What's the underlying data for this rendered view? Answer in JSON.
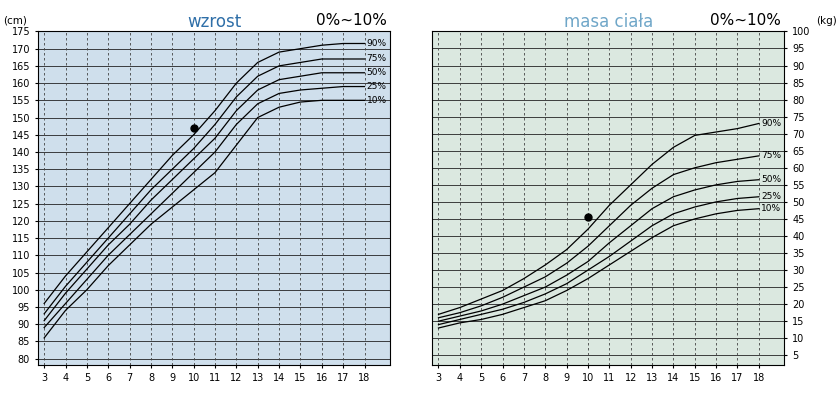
{
  "chart_data": [
    {
      "type": "line",
      "title": "wzrost",
      "corner_text": "0%~10%",
      "y_unit": "(cm)",
      "x": [
        3,
        4,
        5,
        6,
        7,
        8,
        9,
        10,
        11,
        12,
        13,
        14,
        15,
        16,
        17,
        18
      ],
      "series": [
        {
          "name": "90%",
          "values": [
            96,
            104,
            111,
            118,
            125,
            132,
            139,
            145,
            152,
            160,
            166,
            169,
            170,
            171,
            171.5,
            171.5
          ]
        },
        {
          "name": "75%",
          "values": [
            93,
            101,
            108,
            115,
            122,
            129,
            135,
            141,
            148,
            156,
            162,
            165,
            166,
            167,
            167,
            167
          ]
        },
        {
          "name": "50%",
          "values": [
            91,
            99,
            106,
            113,
            119,
            126,
            132,
            138,
            144,
            152,
            158,
            161,
            162,
            163,
            163,
            163
          ]
        },
        {
          "name": "25%",
          "values": [
            89,
            96,
            103,
            110,
            116,
            122,
            128,
            134,
            140,
            148,
            154,
            157,
            158,
            158.5,
            159,
            159
          ]
        },
        {
          "name": "10%",
          "values": [
            86,
            94,
            100,
            107,
            113,
            119,
            124,
            129,
            134,
            142,
            150,
            153,
            154.5,
            155,
            155,
            155
          ]
        }
      ],
      "points": [
        {
          "x": 10,
          "y": 147
        }
      ],
      "xlim": [
        2.7,
        19.2
      ],
      "xticks": [
        3,
        4,
        5,
        6,
        7,
        8,
        9,
        10,
        11,
        12,
        13,
        14,
        15,
        16,
        17,
        18
      ],
      "ylim": [
        78,
        175
      ],
      "yticks": [
        80,
        85,
        90,
        95,
        100,
        105,
        110,
        115,
        120,
        125,
        130,
        135,
        140,
        145,
        150,
        155,
        160,
        165,
        170,
        175
      ],
      "grid": true
    },
    {
      "type": "line",
      "title": "masa ciała",
      "corner_text": "0%~10%",
      "y_unit": "(kg)",
      "x": [
        3,
        4,
        5,
        6,
        7,
        8,
        9,
        10,
        11,
        12,
        13,
        14,
        15,
        16,
        17,
        18
      ],
      "series": [
        {
          "name": "90%",
          "values": [
            17,
            19,
            21.5,
            24,
            27.5,
            31.5,
            36,
            42,
            49,
            55,
            61,
            66,
            69.5,
            70.5,
            71.5,
            73
          ]
        },
        {
          "name": "75%",
          "values": [
            16,
            17.5,
            19.5,
            22,
            25,
            28,
            32,
            37,
            43,
            49,
            54,
            58,
            60,
            61.5,
            62.5,
            63.5
          ]
        },
        {
          "name": "50%",
          "values": [
            15,
            16.5,
            18,
            20,
            22.5,
            25,
            28.5,
            32.5,
            38,
            43,
            48,
            51.5,
            53.5,
            55,
            56,
            56.5
          ]
        },
        {
          "name": "25%",
          "values": [
            14,
            15.5,
            17,
            18.5,
            20.5,
            23,
            26,
            30,
            34,
            38.5,
            43,
            46.5,
            48.5,
            50,
            51,
            51.5
          ]
        },
        {
          "name": "10%",
          "values": [
            13,
            14.5,
            15.5,
            17,
            19,
            21,
            24,
            27.5,
            31.5,
            35.5,
            39.5,
            43,
            45,
            46.5,
            47.5,
            48
          ]
        }
      ],
      "points": [
        {
          "x": 10,
          "y": 45.5
        }
      ],
      "xlim": [
        2.7,
        19.2
      ],
      "xticks": [
        3,
        4,
        5,
        6,
        7,
        8,
        9,
        10,
        11,
        12,
        13,
        14,
        15,
        16,
        17,
        18
      ],
      "ylim": [
        2,
        100
      ],
      "yticks": [
        5,
        10,
        15,
        20,
        25,
        30,
        35,
        40,
        45,
        50,
        55,
        60,
        65,
        70,
        75,
        80,
        85,
        90,
        95,
        100
      ],
      "grid": true
    }
  ]
}
